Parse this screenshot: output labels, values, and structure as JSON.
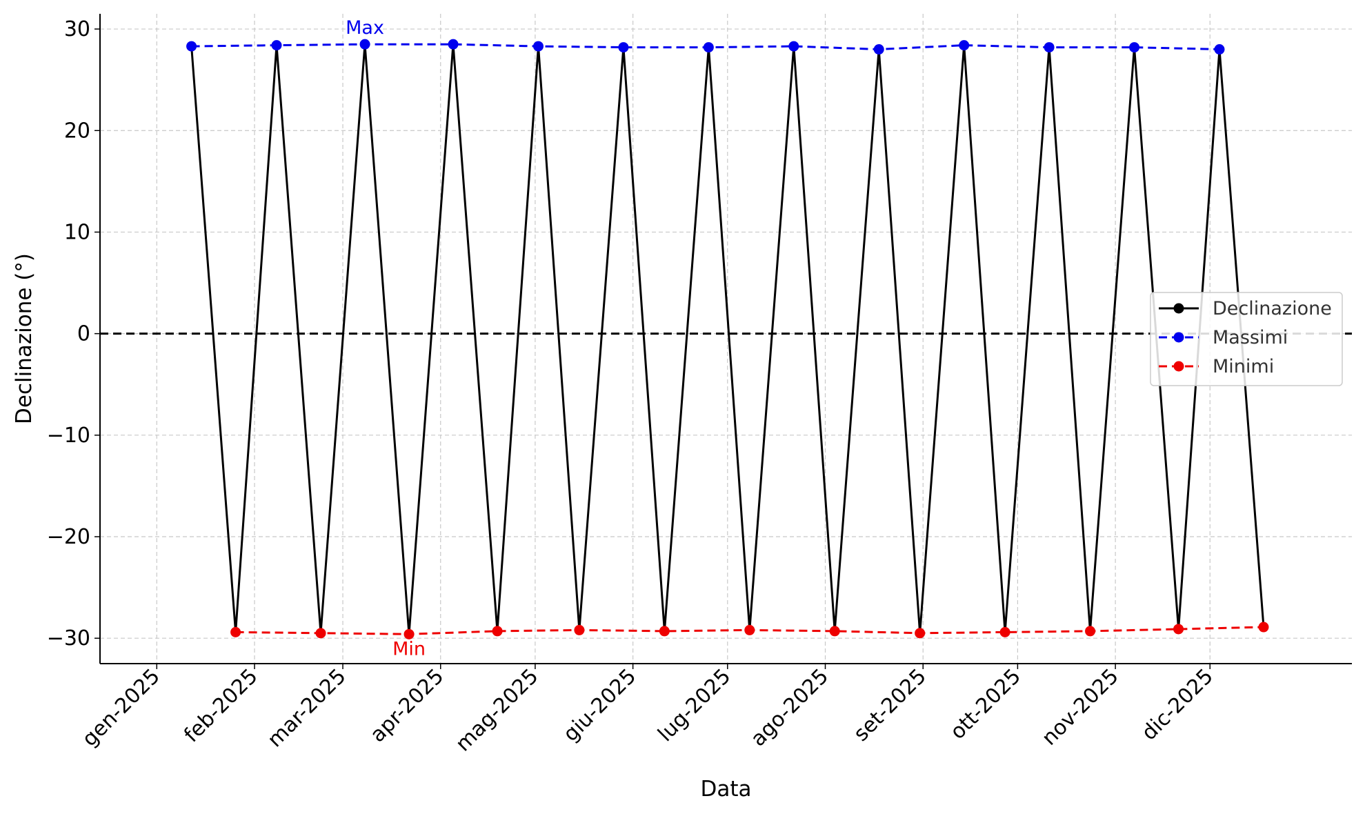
{
  "chart_data": {
    "type": "line",
    "title": "",
    "xlabel": "Data",
    "ylabel": "Declinazione (°)",
    "x_range": [
      "2024-12-14",
      "2026-01-15"
    ],
    "ylim": [
      -32.5,
      31.5
    ],
    "y_ticks": [
      30,
      20,
      10,
      0,
      -10,
      -20,
      -30
    ],
    "y_tick_labels": [
      "30",
      "20",
      "10",
      "0",
      "−10",
      "−20",
      "−30"
    ],
    "x_ticks": [
      "2025-01-01",
      "2025-02-01",
      "2025-03-01",
      "2025-04-01",
      "2025-05-01",
      "2025-06-01",
      "2025-07-01",
      "2025-08-01",
      "2025-09-01",
      "2025-10-01",
      "2025-11-01",
      "2025-12-01"
    ],
    "x_tick_labels": [
      "gen-2025",
      "feb-2025",
      "mar-2025",
      "apr-2025",
      "mag-2025",
      "giu-2025",
      "lug-2025",
      "ago-2025",
      "set-2025",
      "ott-2025",
      "nov-2025",
      "dic-2025"
    ],
    "grid": true,
    "zero_line": true,
    "legend_position": "center-right",
    "series": [
      {
        "name": "Declinazione",
        "color": "#000000",
        "style": "solid",
        "markers": false,
        "x": [
          "2025-01-12",
          "2025-01-26",
          "2025-02-08",
          "2025-02-22",
          "2025-03-08",
          "2025-03-22",
          "2025-04-05",
          "2025-04-19",
          "2025-05-02",
          "2025-05-15",
          "2025-05-29",
          "2025-06-11",
          "2025-06-25",
          "2025-07-08",
          "2025-07-22",
          "2025-08-04",
          "2025-08-18",
          "2025-08-31",
          "2025-09-14",
          "2025-09-27",
          "2025-10-11",
          "2025-10-24",
          "2025-11-07",
          "2025-11-21",
          "2025-12-04",
          "2025-12-18"
        ],
        "values": [
          28.3,
          -29.4,
          28.4,
          -29.5,
          28.5,
          -29.6,
          28.5,
          -29.3,
          28.3,
          -29.2,
          28.2,
          -29.3,
          28.2,
          -29.2,
          28.3,
          -29.3,
          28.0,
          -29.5,
          28.4,
          -29.4,
          28.2,
          -29.3,
          28.2,
          -29.1,
          28.0,
          -28.9
        ]
      },
      {
        "name": "Massimi",
        "color": "#0000ee",
        "style": "dashed",
        "markers": true,
        "x": [
          "2025-01-12",
          "2025-02-08",
          "2025-03-08",
          "2025-04-05",
          "2025-05-02",
          "2025-05-29",
          "2025-06-25",
          "2025-07-22",
          "2025-08-18",
          "2025-09-14",
          "2025-10-11",
          "2025-11-07",
          "2025-12-04"
        ],
        "values": [
          28.3,
          28.4,
          28.5,
          28.5,
          28.3,
          28.2,
          28.2,
          28.3,
          28.0,
          28.4,
          28.2,
          28.2,
          28.0
        ]
      },
      {
        "name": "Minimi",
        "color": "#ee0000",
        "style": "dashed",
        "markers": true,
        "x": [
          "2025-01-26",
          "2025-02-22",
          "2025-03-22",
          "2025-04-19",
          "2025-05-15",
          "2025-06-11",
          "2025-07-08",
          "2025-08-04",
          "2025-08-31",
          "2025-09-27",
          "2025-10-24",
          "2025-11-21",
          "2025-12-18"
        ],
        "values": [
          -29.4,
          -29.5,
          -29.6,
          -29.3,
          -29.2,
          -29.3,
          -29.2,
          -29.3,
          -29.5,
          -29.4,
          -29.3,
          -29.1,
          -28.9
        ]
      }
    ],
    "annotations": [
      {
        "text": "Max",
        "x": "2025-03-08",
        "y": 28.5,
        "color": "#0000ee",
        "placement": "above"
      },
      {
        "text": "Min",
        "x": "2025-03-22",
        "y": -29.6,
        "color": "#ee0000",
        "placement": "below"
      }
    ]
  }
}
